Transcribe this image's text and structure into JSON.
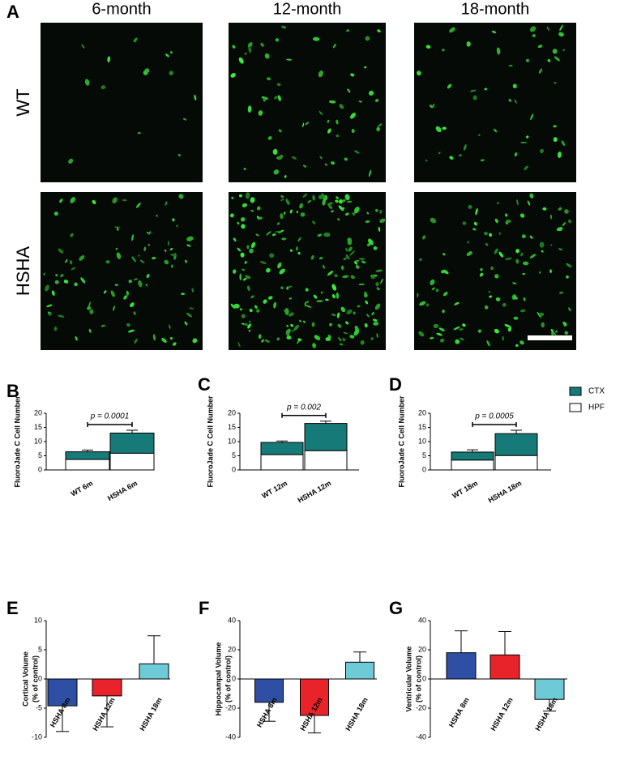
{
  "panel_labels": [
    "A",
    "B",
    "C",
    "D",
    "E",
    "F",
    "G"
  ],
  "images": {
    "columns": [
      "6-month",
      "12-month",
      "18-month"
    ],
    "rows": [
      "WT",
      "HSHA"
    ]
  },
  "chart_data": [
    {
      "type": "stacked_bar",
      "ylabel": "FluoroJade C Cell Number",
      "categories": [
        "WT 6m",
        "HSHA 6m"
      ],
      "series": [
        {
          "color": "#ffffff",
          "values": [
            3.7,
            5.9
          ],
          "errors": [
            0.9,
            0.4
          ]
        },
        {
          "color": "#167a78",
          "values": [
            2.7,
            7.1
          ],
          "errors": [
            0.6,
            1.0
          ]
        }
      ],
      "ylim": [
        0,
        20
      ],
      "yticks": [
        0,
        5,
        10,
        15,
        20
      ],
      "annotation": "p = 0.0001"
    },
    {
      "type": "stacked_bar",
      "ylabel": "FluoroJade C Cell Number",
      "categories": [
        "WT 12m",
        "HSHA 12m"
      ],
      "series": [
        {
          "color": "#ffffff",
          "values": [
            5.4,
            6.8
          ],
          "errors": [
            0.5,
            1.0
          ]
        },
        {
          "color": "#167a78",
          "values": [
            4.3,
            9.6
          ],
          "errors": [
            0.5,
            0.8
          ]
        }
      ],
      "ylim": [
        0,
        20
      ],
      "yticks": [
        0,
        5,
        10,
        15,
        20
      ],
      "annotation": "p = 0.002"
    },
    {
      "type": "stacked_bar",
      "ylabel": "FluoroJade C Cell Number",
      "categories": [
        "WT 18m",
        "HSHA 18m"
      ],
      "series": [
        {
          "name": "HPF",
          "color": "#ffffff",
          "values": [
            3.5,
            5.1
          ],
          "errors": [
            0.7,
            0.6
          ]
        },
        {
          "name": "CTX",
          "color": "#167a78",
          "values": [
            2.8,
            7.7
          ],
          "errors": [
            0.8,
            1.2
          ]
        }
      ],
      "ylim": [
        0,
        20
      ],
      "yticks": [
        0,
        5,
        10,
        15,
        20
      ],
      "annotation": "p = 0.0005",
      "legend": "right"
    },
    {
      "type": "bar",
      "ylabel": [
        "Cortical Volume",
        "(% of control)"
      ],
      "categories": [
        "HSHA 8m",
        "HSHA 12m",
        "HSHA 18m"
      ],
      "values": [
        -4.6,
        -2.9,
        2.6
      ],
      "errors": [
        4.4,
        5.3,
        4.8
      ],
      "colors": [
        "#2e4fa3",
        "#e8232a",
        "#6dcad6"
      ],
      "ylim": [
        -10,
        10
      ],
      "yticks": [
        -10,
        -5,
        0,
        5,
        10
      ]
    },
    {
      "type": "bar",
      "ylabel": [
        "Hippocampal Volume",
        "(% of control)"
      ],
      "categories": [
        "HSHA 8m",
        "HSHA 12m",
        "HSHA 18m"
      ],
      "values": [
        -16,
        -25,
        11.5
      ],
      "errors": [
        13,
        12,
        7
      ],
      "colors": [
        "#2e4fa3",
        "#e8232a",
        "#6dcad6"
      ],
      "ylim": [
        -40,
        40
      ],
      "yticks": [
        -40,
        -20,
        0,
        20,
        40
      ]
    },
    {
      "type": "bar",
      "ylabel": [
        "Ventricular Volume",
        "(% of control)"
      ],
      "categories": [
        "HSHA 8m",
        "HSHA 12m",
        "HSHA 18m"
      ],
      "values": [
        18,
        16.5,
        -14
      ],
      "errors": [
        15,
        16,
        8
      ],
      "colors": [
        "#2e4fa3",
        "#e8232a",
        "#6dcad6"
      ],
      "ylim": [
        -40,
        40
      ],
      "yticks": [
        -40,
        -20,
        0,
        20,
        40
      ]
    }
  ]
}
